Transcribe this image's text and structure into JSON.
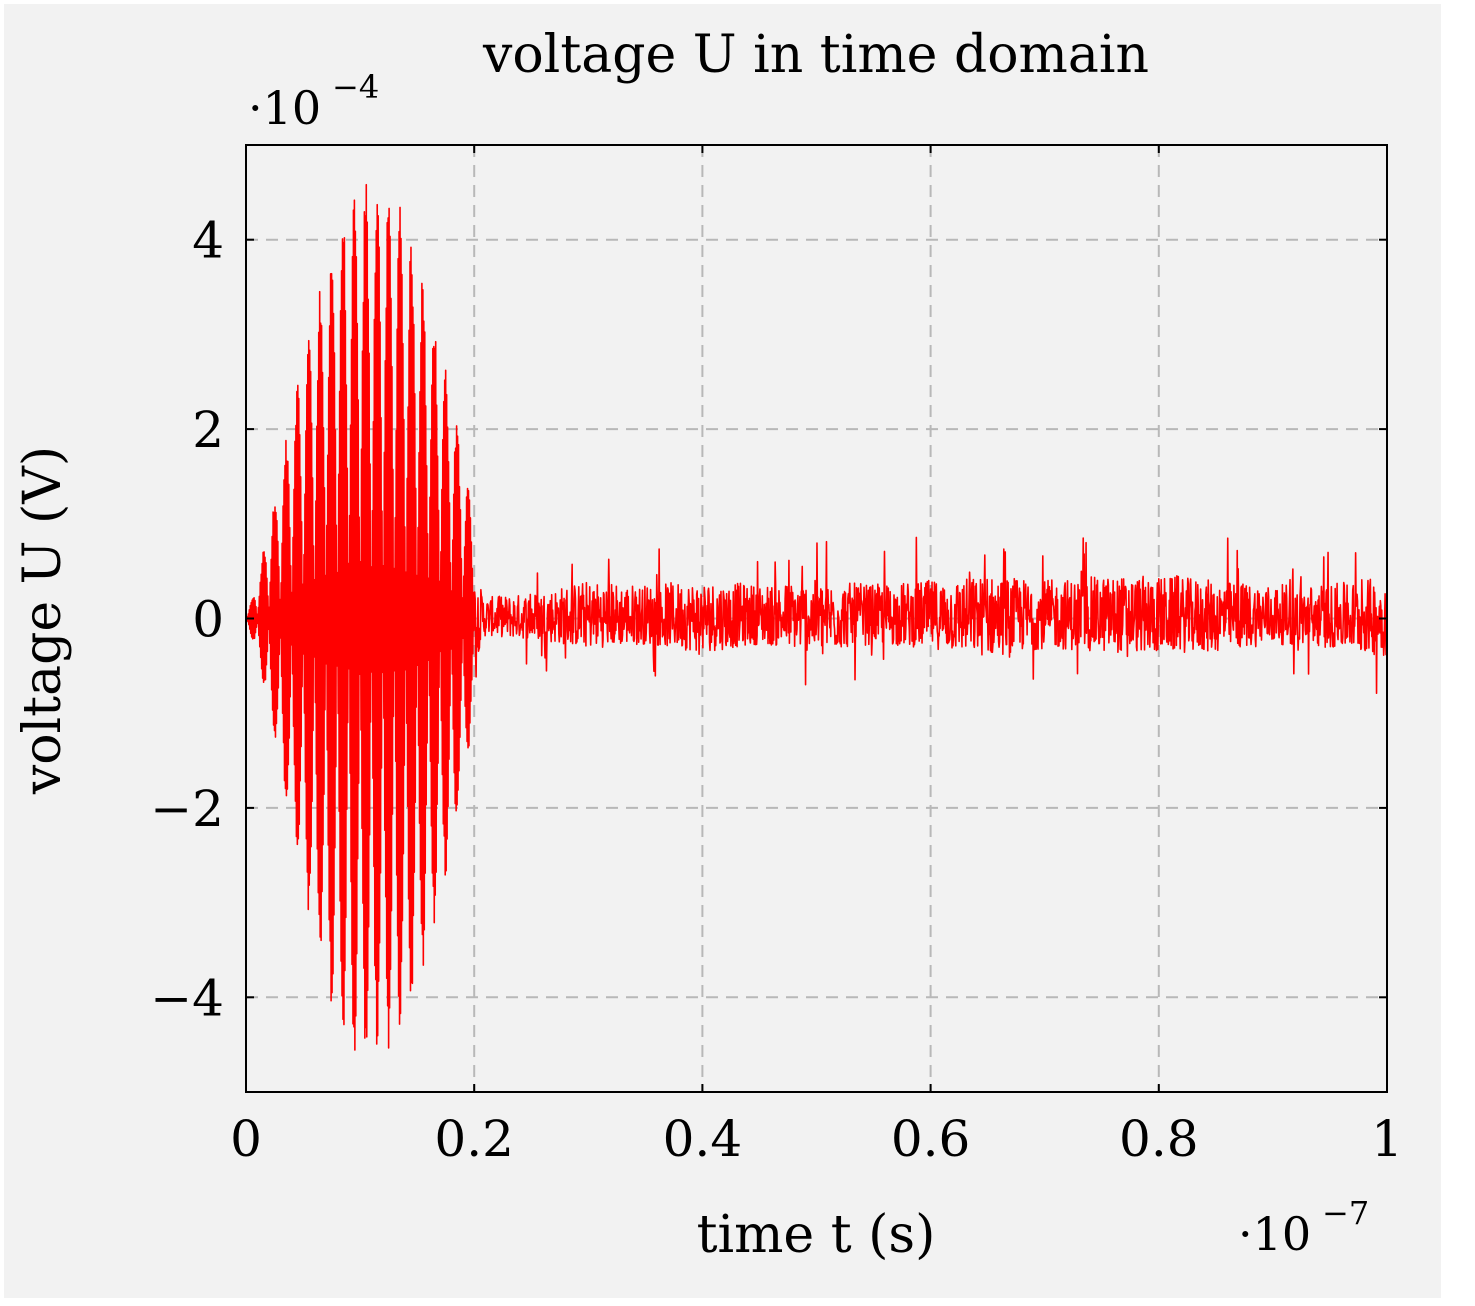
{
  "chart_data": {
    "type": "line",
    "title": "voltage U in time domain",
    "xlabel": "time t (s)",
    "ylabel": "voltage U (V)",
    "x_scale_label": {
      "base": "·10",
      "exponent": "−7"
    },
    "y_scale_label": {
      "base": "·10",
      "exponent": "−4"
    },
    "xlim": [
      0,
      1
    ],
    "ylim": [
      -5,
      5
    ],
    "x_ticks": [
      0,
      0.2,
      0.4,
      0.6,
      0.8,
      1
    ],
    "x_tick_labels": [
      "0",
      "0.2",
      "0.4",
      "0.6",
      "0.8",
      "1"
    ],
    "y_ticks": [
      -4,
      -2,
      0,
      2,
      4
    ],
    "y_tick_labels": [
      "−4",
      "−2",
      "0",
      "2",
      "4"
    ],
    "grid": true,
    "grid_style": "dashed",
    "background_color": "#f2f2f2",
    "series": [
      {
        "color": "#ff0000",
        "x": [
          0,
          0.01,
          0.02,
          0.03,
          0.04,
          0.05,
          0.06,
          0.07,
          0.08,
          0.09,
          0.1,
          0.11,
          0.12,
          0.13,
          0.14,
          0.15,
          0.16,
          0.17,
          0.18,
          0.19,
          0.2,
          0.21,
          0.25,
          0.3,
          0.35,
          0.4,
          0.45,
          0.5,
          0.55,
          0.6,
          0.65,
          0.7,
          0.75,
          0.8,
          0.85,
          0.9,
          0.95,
          1.0
        ],
        "envelope_max": [
          0.0,
          0.4,
          1.0,
          1.6,
          2.2,
          2.8,
          3.3,
          3.8,
          4.2,
          4.5,
          4.7,
          4.7,
          4.6,
          4.5,
          4.2,
          3.9,
          3.5,
          3.0,
          2.4,
          1.8,
          1.0,
          0.5,
          0.6,
          0.9,
          0.8,
          0.9,
          0.8,
          0.9,
          0.8,
          0.9,
          1.0,
          0.9,
          1.0,
          1.0,
          0.9,
          0.8,
          0.8,
          1.0
        ],
        "envelope_min": [
          0.0,
          -0.4,
          -1.0,
          -1.6,
          -2.3,
          -2.9,
          -3.4,
          -3.9,
          -4.3,
          -4.6,
          -4.7,
          -4.7,
          -4.6,
          -4.5,
          -4.3,
          -4.0,
          -3.5,
          -3.0,
          -2.5,
          -1.8,
          -1.0,
          -0.4,
          -0.5,
          -0.7,
          -0.6,
          -0.8,
          -0.6,
          -0.8,
          -0.6,
          -0.7,
          -0.9,
          -0.7,
          -0.8,
          -0.8,
          -0.8,
          -0.6,
          -0.7,
          -0.9
        ]
      }
    ]
  }
}
